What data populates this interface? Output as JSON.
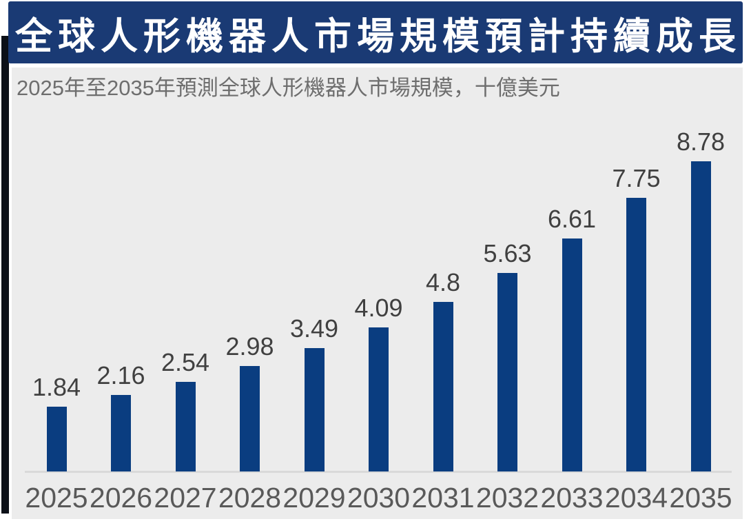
{
  "page": {
    "title": "全球人形機器人市場規模預計持續成長",
    "subtitle": "2025年至2035年預測全球人形機器人市場規模，十億美元"
  },
  "colors": {
    "banner_bg": "#1a3a74",
    "banner_text": "#ffffff",
    "panel_bg": "#ececec",
    "bar": "#0a3d80",
    "axis_line": "#d9d9d9",
    "value_label": "#404040",
    "year_label": "#595959",
    "subtitle_text": "#6e6e6e",
    "edge_strip": "#0c1018"
  },
  "chart_data": {
    "type": "bar",
    "title": "全球人形機器人市場規模預計持續成長",
    "subtitle": "2025年至2035年預測全球人形機器人市場規模，十億美元",
    "unit": "十億美元",
    "xlabel": "",
    "ylabel": "",
    "categories": [
      "2025",
      "2026",
      "2027",
      "2028",
      "2029",
      "2030",
      "2031",
      "2032",
      "2033",
      "2034",
      "2035"
    ],
    "values": [
      1.84,
      2.16,
      2.54,
      2.98,
      3.49,
      4.09,
      4.8,
      5.63,
      6.61,
      7.75,
      8.78
    ],
    "value_labels": [
      "1.84",
      "2.16",
      "2.54",
      "2.98",
      "3.49",
      "4.09",
      "4.8",
      "5.63",
      "6.61",
      "7.75",
      "8.78"
    ],
    "ylim": [
      0,
      9.2
    ],
    "grid": false,
    "legend": false,
    "bar_color": "#0a3d80",
    "data_labels": "above-bars"
  }
}
